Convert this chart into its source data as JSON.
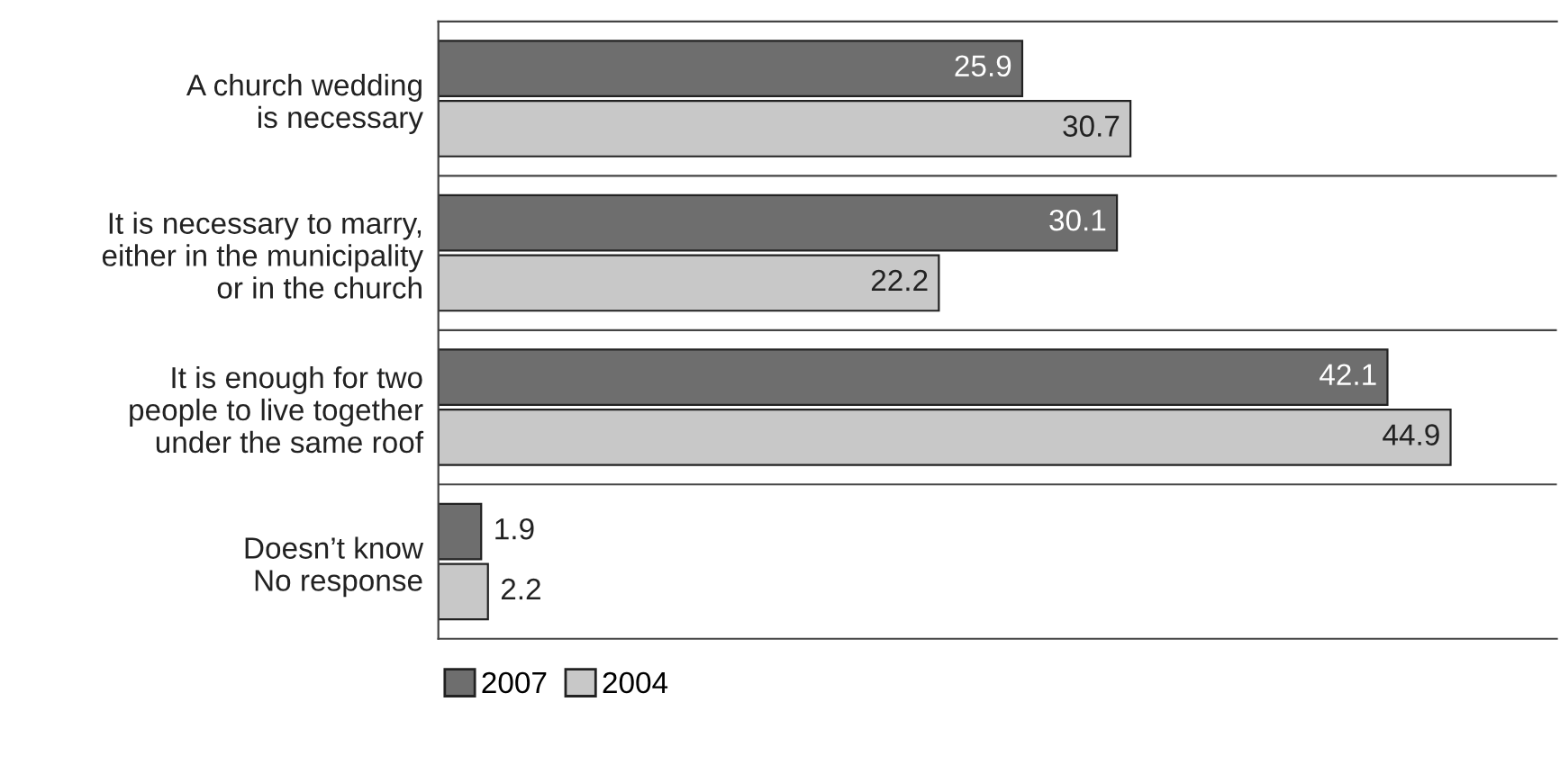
{
  "chart_data": {
    "type": "bar",
    "orientation": "horizontal",
    "categories": [
      "A church wedding\nis necessary",
      "It is necessary to marry,\neither in the municipality\nor in the church",
      "It is enough for two\npeople to live together\nunder the same roof",
      "Doesn’t know\nNo response"
    ],
    "series": [
      {
        "name": "2007",
        "color": "#6e6e6e",
        "values": [
          25.9,
          30.1,
          42.1,
          1.9
        ]
      },
      {
        "name": "2004",
        "color": "#c8c8c8",
        "values": [
          30.7,
          22.2,
          44.9,
          2.2
        ]
      }
    ],
    "data_labels": true,
    "legend": "bottom left",
    "grid": false
  }
}
